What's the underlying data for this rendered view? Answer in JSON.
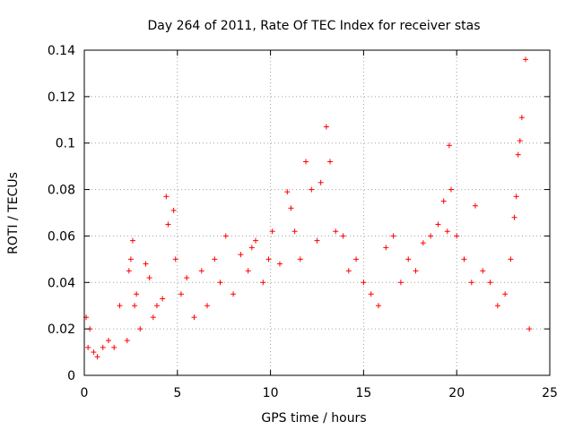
{
  "chart_data": {
    "type": "scatter",
    "title": "Day 264 of 2011, Rate Of TEC Index for receiver stas",
    "xlabel": "GPS time / hours",
    "ylabel": "ROTI / TECUs",
    "xlim": [
      0,
      25
    ],
    "ylim": [
      0,
      0.14
    ],
    "xticks": [
      0,
      5,
      10,
      15,
      20,
      25
    ],
    "yticks": [
      0,
      0.02,
      0.04,
      0.06,
      0.08,
      0.1,
      0.12,
      0.14
    ],
    "xtick_labels": [
      "0",
      "5",
      "10",
      "15",
      "20",
      "25"
    ],
    "ytick_labels": [
      "0",
      "0.02",
      "0.04",
      "0.06",
      "0.08",
      "0.1",
      "0.12",
      "0.14"
    ],
    "grid": true,
    "marker": "+",
    "marker_color": "#ff0000",
    "series": [
      {
        "name": "ROTI",
        "x": [
          0.1,
          0.2,
          0.3,
          0.5,
          0.7,
          1.0,
          1.3,
          1.6,
          1.9,
          2.3,
          2.4,
          2.5,
          2.6,
          2.7,
          2.8,
          3.0,
          3.3,
          3.5,
          3.7,
          3.9,
          4.2,
          4.4,
          4.5,
          4.8,
          4.9,
          5.2,
          5.5,
          5.9,
          6.3,
          6.6,
          7.0,
          7.3,
          7.6,
          8.0,
          8.4,
          8.8,
          9.0,
          9.2,
          9.6,
          9.9,
          10.1,
          10.5,
          10.9,
          11.1,
          11.3,
          11.6,
          11.9,
          12.2,
          12.5,
          12.7,
          13.0,
          13.2,
          13.5,
          13.9,
          14.2,
          14.6,
          15.0,
          15.4,
          15.8,
          16.2,
          16.6,
          17.0,
          17.4,
          17.8,
          18.2,
          18.6,
          19.0,
          19.3,
          19.5,
          19.6,
          19.7,
          20.0,
          20.4,
          20.8,
          21.0,
          21.4,
          21.8,
          22.2,
          22.6,
          22.9,
          23.1,
          23.2,
          23.3,
          23.4,
          23.5,
          23.7,
          23.9
        ],
        "y": [
          0.025,
          0.012,
          0.02,
          0.01,
          0.008,
          0.012,
          0.015,
          0.012,
          0.03,
          0.015,
          0.045,
          0.05,
          0.058,
          0.03,
          0.035,
          0.02,
          0.048,
          0.042,
          0.025,
          0.03,
          0.033,
          0.077,
          0.065,
          0.071,
          0.05,
          0.035,
          0.042,
          0.025,
          0.045,
          0.03,
          0.05,
          0.04,
          0.06,
          0.035,
          0.052,
          0.045,
          0.055,
          0.058,
          0.04,
          0.05,
          0.062,
          0.048,
          0.079,
          0.072,
          0.062,
          0.05,
          0.092,
          0.08,
          0.058,
          0.083,
          0.107,
          0.092,
          0.062,
          0.06,
          0.045,
          0.05,
          0.04,
          0.035,
          0.03,
          0.055,
          0.06,
          0.04,
          0.05,
          0.045,
          0.057,
          0.06,
          0.065,
          0.075,
          0.062,
          0.099,
          0.08,
          0.06,
          0.05,
          0.04,
          0.073,
          0.045,
          0.04,
          0.03,
          0.035,
          0.05,
          0.068,
          0.077,
          0.095,
          0.101,
          0.111,
          0.136,
          0.02
        ]
      }
    ]
  }
}
